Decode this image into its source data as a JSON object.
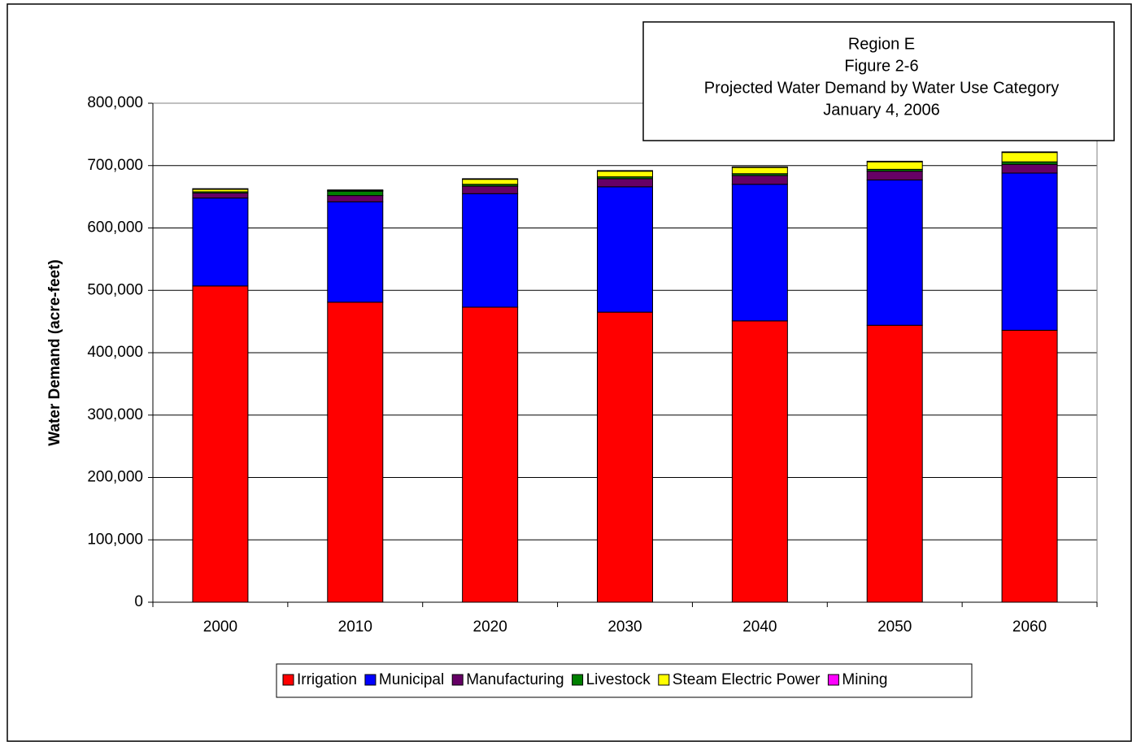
{
  "chart_data": {
    "type": "stacked_bar",
    "title_lines": [
      "Region E",
      "Figure 2-6",
      "Projected Water Demand by Water Use Category",
      "January 4, 2006"
    ],
    "y_label": "Water Demand (acre-feet)",
    "categories": [
      "2000",
      "2010",
      "2020",
      "2030",
      "2040",
      "2050",
      "2060"
    ],
    "series": [
      {
        "name": "Irrigation",
        "color": "#ff0000",
        "values": [
          507000,
          481000,
          473000,
          465000,
          451000,
          444000,
          436000
        ]
      },
      {
        "name": "Municipal",
        "color": "#0000ff",
        "values": [
          141000,
          161000,
          182000,
          201000,
          219000,
          233000,
          252000
        ]
      },
      {
        "name": "Manufacturing",
        "color": "#660066",
        "values": [
          8000,
          10000,
          12000,
          13000,
          14000,
          14000,
          14000
        ]
      },
      {
        "name": "Livestock",
        "color": "#008000",
        "values": [
          2000,
          7000,
          3000,
          3000,
          3000,
          3000,
          4000
        ]
      },
      {
        "name": "Steam Electric Power",
        "color": "#ffff00",
        "values": [
          4000,
          1000,
          8000,
          9000,
          10000,
          12000,
          15000
        ]
      },
      {
        "name": "Mining",
        "color": "#ff00ff",
        "values": [
          1000,
          1000,
          1000,
          1000,
          1000,
          1000,
          1000
        ]
      }
    ],
    "ylim": [
      0,
      800000
    ],
    "yticks": [
      0,
      {
        "value": 100000,
        "label": "100,000"
      },
      {
        "value": 200000,
        "label": "200,000"
      },
      {
        "value": 300000,
        "label": "300,000"
      },
      {
        "value": 400000,
        "label": "400,000"
      },
      {
        "value": 500000,
        "label": "500,000"
      },
      {
        "value": 600000,
        "label": "600,000"
      },
      {
        "value": 700000,
        "label": "700,000"
      },
      {
        "value": 800000,
        "label": "800,000"
      }
    ],
    "grid": true,
    "legend": "bottom"
  }
}
